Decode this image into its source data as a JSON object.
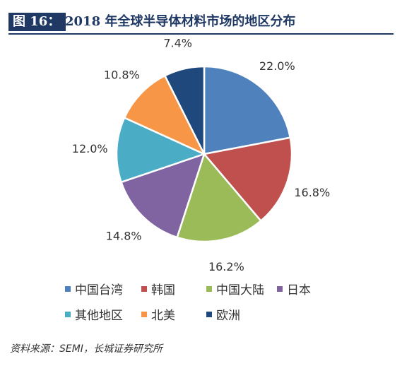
{
  "header": {
    "figure_label": "图 16：",
    "title": "2018 年全球半导体材料市场的地区分布"
  },
  "chart_data": {
    "type": "pie",
    "title": "",
    "legend_position": "bottom",
    "slices": [
      {
        "name": "中国台湾",
        "value": 22.0,
        "label": "22.0%",
        "color": "#4f81bd"
      },
      {
        "name": "韩国",
        "value": 16.8,
        "label": "16.8%",
        "color": "#c0504d"
      },
      {
        "name": "中国大陆",
        "value": 16.2,
        "label": "16.2%",
        "color": "#9bbb59"
      },
      {
        "name": "日本",
        "value": 14.8,
        "label": "14.8%",
        "color": "#8064a2"
      },
      {
        "name": "其他地区",
        "value": 12.0,
        "label": "12.0%",
        "color": "#4bacc6"
      },
      {
        "name": "北美",
        "value": 10.8,
        "label": "10.8%",
        "color": "#f79646"
      },
      {
        "name": "欧洲",
        "value": 7.4,
        "label": "7.4%",
        "color": "#1f497d"
      }
    ]
  },
  "footer": {
    "source": "资料来源：SEMI，长城证券研究所"
  }
}
